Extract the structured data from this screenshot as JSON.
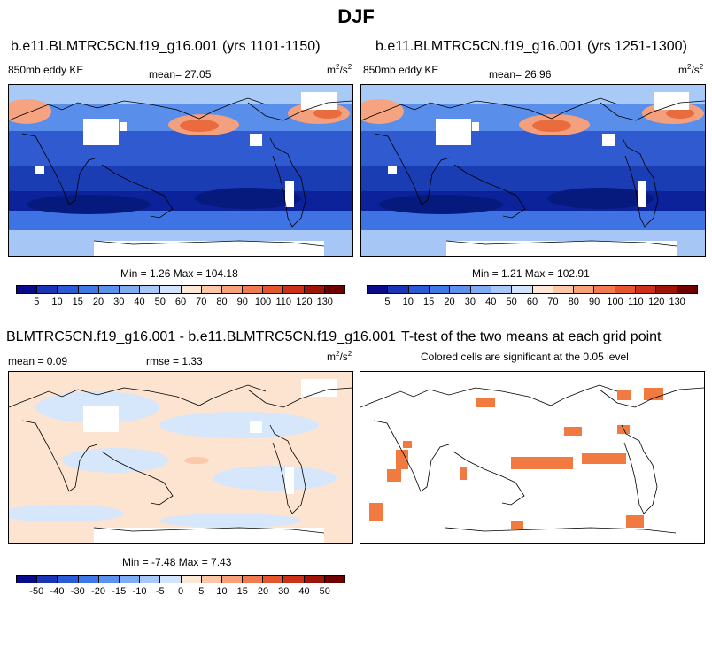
{
  "title": "DJF",
  "panels": {
    "p1": {
      "title": "b.e11.BLMTRC5CN.f19_g16.001 (yrs 1101-1150)",
      "left_label": "850mb eddy KE",
      "mean_label": "mean=",
      "mean_value": "27.05",
      "units_base": "m",
      "units_sup1": "2",
      "units_mid": "/s",
      "units_sup2": "2",
      "minmax": "Min =   1.26 Max = 104.18"
    },
    "p2": {
      "title": "b.e11.BLMTRC5CN.f19_g16.001 (yrs 1251-1300)",
      "left_label": "850mb eddy KE",
      "mean_label": "mean=",
      "mean_value": "26.96",
      "units_base": "m",
      "units_sup1": "2",
      "units_mid": "/s",
      "units_sup2": "2",
      "minmax": "Min =   1.21 Max = 102.91"
    },
    "p3": {
      "title": "BLMTRC5CN.f19_g16.001 - b.e11.BLMTRC5CN.f19_g16.001",
      "mean_label": "mean =",
      "mean_value": "0.09",
      "rmse_label": "rmse =",
      "rmse_value": "1.33",
      "units_base": "m",
      "units_sup1": "2",
      "units_mid": "/s",
      "units_sup2": "2",
      "minmax": "Min = -7.48 Max =   7.43"
    },
    "p4": {
      "title": "T-test of the two means at each grid point",
      "subtitle": "Colored cells are significant at the 0.05 level"
    }
  },
  "colorbars": {
    "ke": {
      "colors": [
        "#0a0a8c",
        "#1a34b8",
        "#2a5ad6",
        "#3d78e6",
        "#5a92ee",
        "#7eadf4",
        "#a6c9f9",
        "#d2e4fc",
        "#fde8d6",
        "#fcc7a6",
        "#f8a07a",
        "#f17a50",
        "#e45530",
        "#cc3018",
        "#a01408",
        "#700000"
      ],
      "ticks": [
        "5",
        "10",
        "15",
        "20",
        "30",
        "40",
        "50",
        "60",
        "70",
        "80",
        "90",
        "100",
        "110",
        "120",
        "130"
      ]
    },
    "diff": {
      "colors": [
        "#0a0a8c",
        "#1a34b8",
        "#2a5ad6",
        "#3d78e6",
        "#5a92ee",
        "#7eadf4",
        "#a6c9f9",
        "#d2e4fc",
        "#fde8d6",
        "#fcc7a6",
        "#f8a07a",
        "#f17a50",
        "#e45530",
        "#cc3018",
        "#a01408",
        "#700000"
      ],
      "ticks": [
        "-50",
        "-40",
        "-30",
        "-20",
        "-15",
        "-10",
        "-5",
        "0",
        "5",
        "10",
        "15",
        "20",
        "30",
        "40",
        "50"
      ]
    }
  },
  "colors": {
    "ocean_mid": "#3f72e2",
    "ocean_deep": "#1232a8",
    "jet": "#f28a60",
    "missing": "#ffffff",
    "sig": "#f07a40",
    "diff_pos": "#fde4d0",
    "diff_neg": "#d6e6fb"
  }
}
